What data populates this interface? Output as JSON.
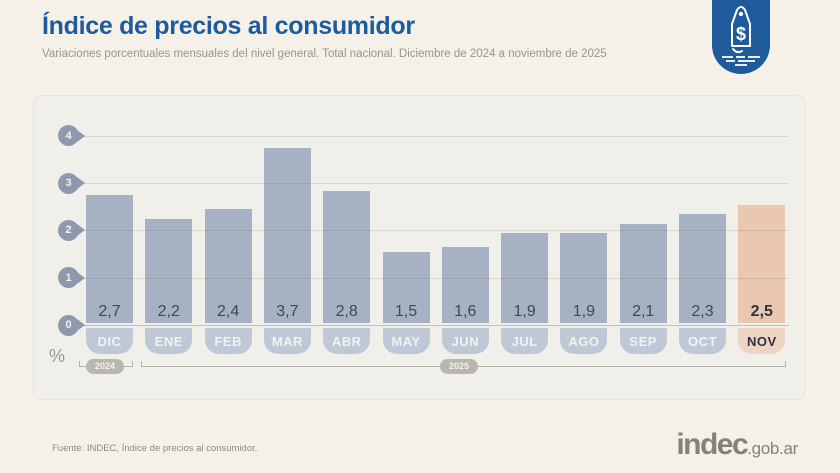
{
  "header": {
    "title": "Índice de precios al consumidor",
    "subtitle": "Variaciones porcentuales mensuales del nivel general. Total nacional. Diciembre de 2024 a noviembre de 2025"
  },
  "badge": {
    "icon": "price-tag-icon",
    "symbol": "$",
    "color": "#1f5a9b"
  },
  "chart_data": {
    "type": "bar",
    "categories": [
      "DIC",
      "ENE",
      "FEB",
      "MAR",
      "ABR",
      "MAY",
      "JUN",
      "JUL",
      "AGO",
      "SEP",
      "OCT",
      "NOV"
    ],
    "values": [
      2.7,
      2.2,
      2.4,
      3.7,
      2.8,
      1.5,
      1.6,
      1.9,
      1.9,
      2.1,
      2.3,
      2.5
    ],
    "value_labels": [
      "2,7",
      "2,2",
      "2,4",
      "3,7",
      "2,8",
      "1,5",
      "1,6",
      "1,9",
      "1,9",
      "2,1",
      "2,3",
      "2,5"
    ],
    "highlight_index": 11,
    "title": "Índice de precios al consumidor",
    "xlabel": "",
    "ylabel": "%",
    "yticks": [
      0,
      1,
      2,
      3,
      4
    ],
    "ylim": [
      0,
      4
    ],
    "grid": true,
    "legend": false,
    "bar_color": "#a6b1c4",
    "highlight_bar_color": "#eac7b0",
    "year_groups": [
      {
        "label": "2024",
        "span": [
          0,
          0
        ]
      },
      {
        "label": "2025",
        "span": [
          1,
          11
        ]
      }
    ]
  },
  "footer": {
    "source": "Fuente: INDEC, Índice de precios al consumidor.",
    "logo_main": "indec",
    "logo_suffix": ".gob.ar"
  }
}
